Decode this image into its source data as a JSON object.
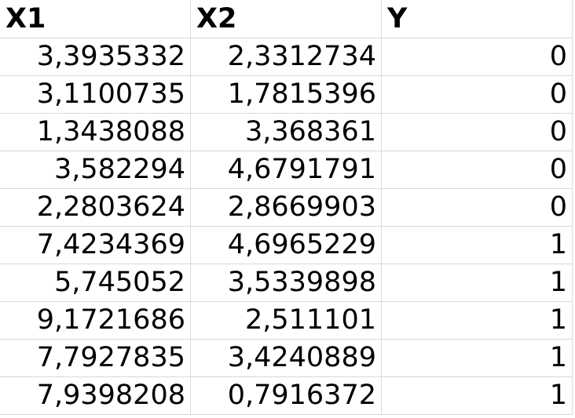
{
  "sheet": {
    "columns": [
      "X1",
      "X2",
      "Y"
    ],
    "rows": [
      [
        "3,3935332",
        "2,3312734",
        "0"
      ],
      [
        "3,1100735",
        "1,7815396",
        "0"
      ],
      [
        "1,3438088",
        "3,368361",
        "0"
      ],
      [
        "3,582294",
        "4,6791791",
        "0"
      ],
      [
        "2,2803624",
        "2,8669903",
        "0"
      ],
      [
        "7,4234369",
        "4,6965229",
        "1"
      ],
      [
        "5,745052",
        "3,5339898",
        "1"
      ],
      [
        "9,1721686",
        "2,511101",
        "1"
      ],
      [
        "7,7927835",
        "3,4240889",
        "1"
      ],
      [
        "7,9398208",
        "0,7916372",
        "1"
      ]
    ]
  },
  "colors": {
    "gridline": "#d9d9d9",
    "text": "#000000",
    "background": "#ffffff"
  }
}
